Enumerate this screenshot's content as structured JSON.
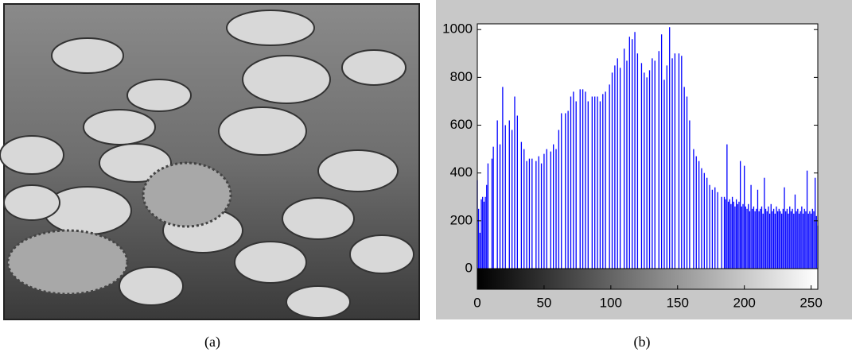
{
  "captions": [
    "(a)",
    "(b)"
  ],
  "chart_data": {
    "type": "histogram",
    "color": "#0000ff",
    "x": [
      0,
      1,
      2,
      3,
      4,
      5,
      6,
      7,
      8,
      9,
      10,
      11,
      12,
      13,
      14,
      15,
      16,
      17,
      18,
      19,
      20,
      21,
      22,
      23,
      24,
      25,
      26,
      27,
      28,
      29,
      30,
      31,
      32,
      33,
      34,
      35,
      36,
      37,
      38,
      39,
      40,
      41,
      42,
      43,
      44,
      45,
      46,
      47,
      48,
      49,
      50,
      51,
      52,
      53,
      54,
      55,
      56,
      57,
      58,
      59,
      60,
      61,
      62,
      63,
      64,
      65,
      66,
      67,
      68,
      69,
      70,
      71,
      72,
      73,
      74,
      75,
      76,
      77,
      78,
      79,
      80,
      81,
      82,
      83,
      84,
      85,
      86,
      87,
      88,
      89,
      90,
      91,
      92,
      93,
      94,
      95,
      96,
      97,
      98,
      99,
      100,
      101,
      102,
      103,
      104,
      105,
      106,
      107,
      108,
      109,
      110,
      111,
      112,
      113,
      114,
      115,
      116,
      117,
      118,
      119,
      120,
      121,
      122,
      123,
      124,
      125,
      126,
      127,
      128,
      129,
      130,
      131,
      132,
      133,
      134,
      135,
      136,
      137,
      138,
      139,
      140,
      141,
      142,
      143,
      144,
      145,
      146,
      147,
      148,
      149,
      150,
      151,
      152,
      153,
      154,
      155,
      156,
      157,
      158,
      159,
      160,
      161,
      162,
      163,
      164,
      165,
      166,
      167,
      168,
      169,
      170,
      171,
      172,
      173,
      174,
      175,
      176,
      177,
      178,
      179,
      180,
      181,
      182,
      183,
      184,
      185,
      186,
      187,
      188,
      189,
      190,
      191,
      192,
      193,
      194,
      195,
      196,
      197,
      198,
      199,
      200,
      201,
      202,
      203,
      204,
      205,
      206,
      207,
      208,
      209,
      210,
      211,
      212,
      213,
      214,
      215,
      216,
      217,
      218,
      219,
      220,
      221,
      222,
      223,
      224,
      225,
      226,
      227,
      228,
      229,
      230,
      231,
      232,
      233,
      234,
      235,
      236,
      237,
      238,
      239,
      240,
      241,
      242,
      243,
      244,
      245,
      246,
      247,
      248,
      249,
      250,
      251,
      252,
      253,
      254,
      255
    ],
    "values": [
      370,
      250,
      150,
      290,
      300,
      280,
      300,
      350,
      440,
      0,
      0,
      460,
      510,
      0,
      0,
      620,
      0,
      520,
      0,
      760,
      0,
      600,
      0,
      0,
      620,
      0,
      580,
      0,
      720,
      0,
      640,
      0,
      0,
      530,
      0,
      500,
      0,
      450,
      0,
      460,
      0,
      460,
      0,
      0,
      450,
      0,
      470,
      0,
      440,
      0,
      480,
      0,
      500,
      0,
      0,
      490,
      0,
      520,
      0,
      500,
      0,
      580,
      0,
      650,
      0,
      0,
      650,
      0,
      660,
      0,
      720,
      0,
      740,
      0,
      700,
      0,
      0,
      750,
      0,
      750,
      0,
      740,
      0,
      700,
      0,
      0,
      720,
      0,
      720,
      0,
      720,
      0,
      700,
      0,
      730,
      0,
      740,
      0,
      0,
      770,
      0,
      820,
      0,
      850,
      0,
      880,
      0,
      840,
      0,
      0,
      920,
      0,
      870,
      0,
      970,
      0,
      960,
      0,
      990,
      0,
      900,
      0,
      0,
      860,
      0,
      820,
      0,
      800,
      0,
      830,
      0,
      880,
      0,
      870,
      0,
      0,
      910,
      0,
      980,
      0,
      790,
      0,
      850,
      0,
      1010,
      0,
      880,
      0,
      900,
      0,
      0,
      900,
      0,
      890,
      0,
      760,
      0,
      720,
      0,
      620,
      0,
      0,
      500,
      0,
      470,
      0,
      450,
      0,
      420,
      0,
      400,
      0,
      380,
      0,
      350,
      0,
      330,
      0,
      340,
      0,
      320,
      0,
      0,
      300,
      0,
      300,
      290,
      520,
      280,
      290,
      270,
      300,
      280,
      260,
      290,
      270,
      280,
      450,
      260,
      270,
      430,
      260,
      250,
      270,
      240,
      350,
      250,
      260,
      240,
      250,
      330,
      240,
      250,
      260,
      230,
      380,
      250,
      240,
      260,
      230,
      270,
      240,
      250,
      230,
      260,
      240,
      250,
      240,
      230,
      250,
      340,
      240,
      250,
      230,
      260,
      240,
      250,
      230,
      310,
      240,
      250,
      230,
      240,
      260,
      230,
      250,
      240,
      410,
      230,
      240,
      230,
      250,
      240,
      380,
      220,
      180
    ],
    "xlim": [
      0,
      255
    ],
    "ylim": [
      0,
      1024
    ],
    "xticks": [
      0,
      50,
      100,
      150,
      200,
      250
    ],
    "yticks": [
      0,
      200,
      400,
      600,
      800,
      1000
    ]
  }
}
